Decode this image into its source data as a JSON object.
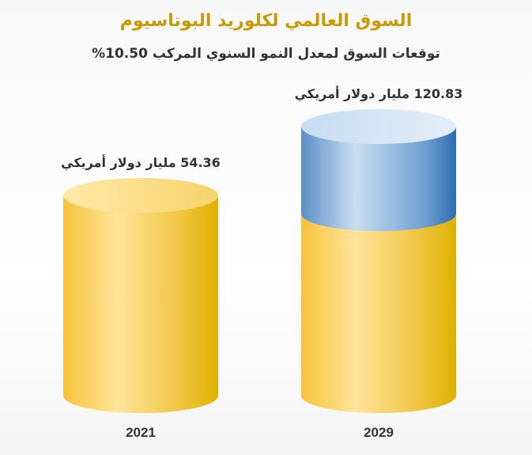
{
  "chart_data": {
    "type": "bar",
    "title": "السوق العالمي لكلوريد البوتاسيوم",
    "subtitle": "توقعات السوق لمعدل النمو السنوي المركب 10.50%",
    "categories": [
      "2021",
      "2029"
    ],
    "values": [
      54.36,
      120.83
    ],
    "data_labels": [
      "54.36 مليار دولار أمريكي",
      "120.83 مليار دولار أمريكي"
    ],
    "style": "3d-cylinder",
    "colors": {
      "base": "#f5c232",
      "growth": "#4f8cc9",
      "title": "#c99a06"
    },
    "grid": false
  }
}
